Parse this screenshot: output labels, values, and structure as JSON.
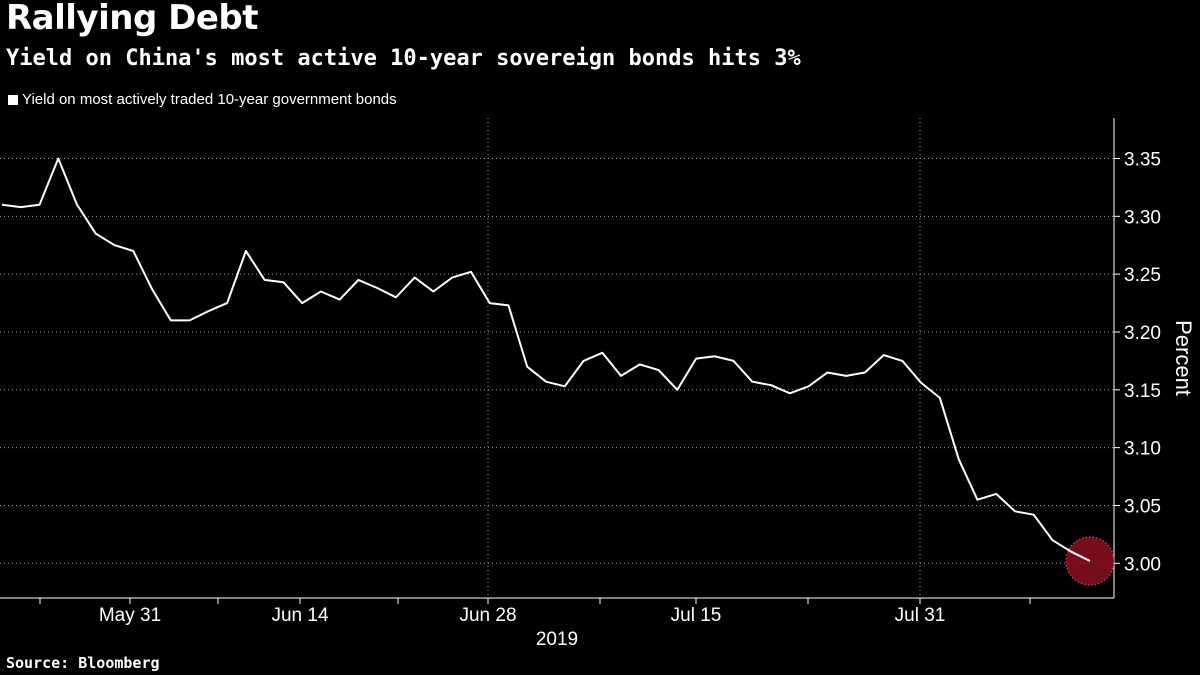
{
  "header": {
    "title": "Rallying Debt",
    "subtitle": "Yield on China's most active 10-year sovereign bonds hits 3%"
  },
  "legend": {
    "label": "Yield on most actively traded 10-year government bonds"
  },
  "footer": {
    "source": "Source: Bloomberg"
  },
  "colors": {
    "background": "#000000",
    "line": "#ffffff",
    "highlight": "#8b0f1f",
    "grid": "#9a9a9a"
  },
  "chart_data": {
    "type": "line",
    "title": "Rallying Debt",
    "subtitle": "Yield on China's most active 10-year sovereign bonds hits 3%",
    "ylabel": "Percent",
    "xlabel": "2019",
    "ylim": [
      2.97,
      3.385
    ],
    "y_ticks": [
      3.0,
      3.05,
      3.1,
      3.15,
      3.2,
      3.25,
      3.3,
      3.35
    ],
    "y_tick_labels": [
      "3.00",
      "3.05",
      "3.10",
      "3.15",
      "3.20",
      "3.25",
      "3.30",
      "3.35"
    ],
    "x_tick_labels": [
      {
        "label": "May 31",
        "index": 7
      },
      {
        "label": "Jun 14",
        "index": 16
      },
      {
        "label": "Jun 28",
        "index": 26
      },
      {
        "label": "Jul 15",
        "index": 37
      },
      {
        "label": "Jul 31",
        "index": 49
      }
    ],
    "year_label": "2019",
    "legend": [
      "Yield on most actively traded 10-year government bonds"
    ],
    "grid": true,
    "series": [
      {
        "name": "Yield on most actively traded 10-year government bonds",
        "values": [
          3.31,
          3.308,
          3.31,
          3.35,
          3.31,
          3.285,
          3.275,
          3.27,
          3.237,
          3.21,
          3.21,
          3.218,
          3.225,
          3.27,
          3.245,
          3.243,
          3.225,
          3.235,
          3.228,
          3.245,
          3.238,
          3.23,
          3.247,
          3.235,
          3.247,
          3.252,
          3.225,
          3.223,
          3.17,
          3.157,
          3.153,
          3.175,
          3.182,
          3.162,
          3.172,
          3.167,
          3.15,
          3.177,
          3.179,
          3.175,
          3.157,
          3.154,
          3.147,
          3.153,
          3.165,
          3.162,
          3.165,
          3.18,
          3.175,
          3.156,
          3.143,
          3.09,
          3.055,
          3.06,
          3.045,
          3.042,
          3.02,
          3.01,
          3.002
        ]
      }
    ],
    "highlight_index": 58
  }
}
